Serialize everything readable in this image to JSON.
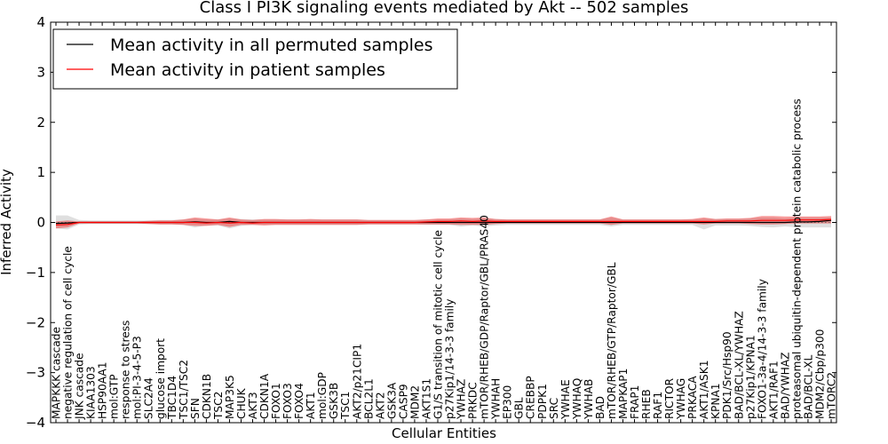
{
  "chart_data": {
    "type": "line",
    "title": "Class I PI3K signaling events mediated by Akt -- 502 samples",
    "xlabel": "Cellular Entities",
    "ylabel": "Inferred Activity",
    "ylim": [
      -4,
      4
    ],
    "yticks": [
      -4,
      -3,
      -2,
      -1,
      0,
      1,
      2,
      3,
      4
    ],
    "ytick_labels": [
      "−4",
      "−3",
      "−2",
      "−1",
      "0",
      "1",
      "2",
      "3",
      "4"
    ],
    "legend_position": "top-left",
    "categories": [
      "MAPKKK cascade",
      "negative regulation of cell cycle",
      "JNK cascade",
      "KIAA1303",
      "HSP90AA1",
      "mol:GTP",
      "response to stress",
      "mol:PI-3-4-5-P3",
      "SLC2A4",
      "glucose import",
      "TBC1D4",
      "TSC1/TSC2",
      "SFN",
      "CDKN1B",
      "TSC2",
      "MAP3K5",
      "CHUK",
      "AKT3",
      "CDKN1A",
      "FOXO1",
      "FOXO3",
      "FOXO4",
      "AKT1",
      "mol:GDP",
      "GSK3B",
      "TSC1",
      "AKT2/p21CIP1",
      "BCL2L1",
      "AKT2",
      "GSK3A",
      "CASP9",
      "MDM2",
      "AKT1S1",
      "G1/S transition of mitotic cell cycle",
      "p27Kip1/14-3-3 family",
      "YWHAZ",
      "PRKDC",
      "mTOR/RHEB/GDP/Raptor/GBL/PRAS40",
      "YWHAH",
      "EP300",
      "GBL",
      "CREBBP",
      "PDPK1",
      "SRC",
      "YWHAE",
      "YWHAQ",
      "YWHAB",
      "BAD",
      "mTOR/RHEB/GTP/Raptor/GBL",
      "MAPKAP1",
      "FRAP1",
      "RHEB",
      "RAF1",
      "RICTOR",
      "YWHAG",
      "PRKACA",
      "AKT1/ASK1",
      "KPNA1",
      "PDK1/Src/Hsp90",
      "BAD/BCL-XL/YWHAZ",
      "p27Kip1/KPNA1",
      "FOXO1-3a-4/14-3-3 family",
      "AKT1/RAF1",
      "BAD/YWHAZ",
      "proteasomal ubiquitin-dependent protein catabolic process",
      "BAD/BCL-XL",
      "MDM2/Cbp/p300",
      "mTORC2"
    ],
    "series": [
      {
        "name": "Mean activity in all permuted samples",
        "color": "#000000",
        "values": [
          -0.02,
          -0.01,
          0.0,
          0.0,
          0.0,
          0.0,
          0.0,
          0.0,
          0.0,
          0.0,
          0.0,
          0.0,
          0.01,
          0.0,
          0.0,
          0.02,
          0.0,
          0.0,
          0.0,
          0.0,
          0.0,
          0.0,
          0.0,
          0.0,
          0.0,
          0.0,
          0.0,
          0.0,
          0.0,
          0.0,
          0.0,
          0.0,
          0.0,
          0.0,
          0.0,
          0.0,
          0.0,
          0.0,
          0.0,
          0.0,
          0.0,
          0.0,
          0.0,
          0.0,
          0.0,
          0.0,
          0.0,
          0.0,
          0.0,
          0.0,
          0.0,
          0.0,
          0.0,
          0.0,
          0.0,
          0.0,
          0.0,
          0.0,
          0.0,
          0.0,
          0.0,
          0.0,
          0.0,
          0.0,
          0.01,
          0.01,
          0.02,
          0.04
        ],
        "band_upper": [
          0.14,
          0.14,
          0.05,
          0.04,
          0.04,
          0.04,
          0.04,
          0.04,
          0.04,
          0.05,
          0.05,
          0.06,
          0.08,
          0.06,
          0.06,
          0.08,
          0.07,
          0.06,
          0.06,
          0.06,
          0.06,
          0.06,
          0.06,
          0.06,
          0.06,
          0.06,
          0.06,
          0.05,
          0.05,
          0.05,
          0.05,
          0.05,
          0.06,
          0.06,
          0.06,
          0.08,
          0.07,
          0.08,
          0.07,
          0.06,
          0.06,
          0.06,
          0.06,
          0.06,
          0.06,
          0.06,
          0.06,
          0.06,
          0.1,
          0.06,
          0.06,
          0.06,
          0.06,
          0.06,
          0.06,
          0.06,
          0.08,
          0.07,
          0.07,
          0.07,
          0.08,
          0.1,
          0.1,
          0.08,
          0.1,
          0.1,
          0.1,
          0.1
        ],
        "band_lower": [
          -0.12,
          -0.14,
          -0.04,
          -0.03,
          -0.03,
          -0.03,
          -0.03,
          -0.03,
          -0.03,
          -0.04,
          -0.04,
          -0.05,
          -0.1,
          -0.06,
          -0.06,
          -0.12,
          -0.07,
          -0.05,
          -0.05,
          -0.05,
          -0.05,
          -0.05,
          -0.05,
          -0.05,
          -0.05,
          -0.05,
          -0.05,
          -0.04,
          -0.04,
          -0.04,
          -0.04,
          -0.04,
          -0.05,
          -0.05,
          -0.05,
          -0.08,
          -0.06,
          -0.08,
          -0.06,
          -0.05,
          -0.05,
          -0.05,
          -0.05,
          -0.05,
          -0.05,
          -0.05,
          -0.05,
          -0.05,
          -0.08,
          -0.05,
          -0.05,
          -0.05,
          -0.05,
          -0.05,
          -0.05,
          -0.05,
          -0.14,
          -0.06,
          -0.06,
          -0.06,
          -0.07,
          -0.09,
          -0.1,
          -0.08,
          -0.1,
          -0.1,
          -0.1,
          -0.1
        ]
      },
      {
        "name": "Mean activity in patient samples",
        "color": "#ff0000",
        "values": [
          -0.05,
          -0.04,
          0.0,
          0.0,
          0.0,
          0.0,
          0.0,
          0.0,
          0.0,
          0.0,
          0.0,
          0.0,
          0.0,
          -0.01,
          0.0,
          -0.01,
          0.0,
          -0.01,
          0.0,
          0.0,
          0.0,
          0.0,
          0.0,
          0.0,
          0.0,
          0.0,
          0.0,
          0.0,
          0.0,
          0.0,
          0.0,
          0.0,
          0.01,
          0.02,
          0.02,
          0.03,
          0.02,
          0.03,
          0.02,
          0.02,
          0.02,
          0.02,
          0.02,
          0.02,
          0.02,
          0.02,
          0.02,
          0.02,
          0.02,
          0.02,
          0.02,
          0.02,
          0.02,
          0.02,
          0.02,
          0.02,
          0.02,
          0.02,
          0.03,
          0.03,
          0.03,
          0.04,
          0.04,
          0.04,
          0.05,
          0.05,
          0.05,
          0.06
        ],
        "band_upper": [
          0.02,
          0.04,
          0.02,
          0.02,
          0.02,
          0.02,
          0.02,
          0.02,
          0.03,
          0.04,
          0.04,
          0.06,
          0.1,
          0.08,
          0.06,
          0.1,
          0.06,
          0.05,
          0.07,
          0.07,
          0.06,
          0.06,
          0.07,
          0.06,
          0.06,
          0.06,
          0.06,
          0.05,
          0.05,
          0.05,
          0.05,
          0.05,
          0.06,
          0.08,
          0.08,
          0.1,
          0.09,
          0.1,
          0.07,
          0.06,
          0.06,
          0.06,
          0.06,
          0.06,
          0.06,
          0.06,
          0.06,
          0.06,
          0.12,
          0.06,
          0.06,
          0.06,
          0.06,
          0.06,
          0.06,
          0.07,
          0.1,
          0.07,
          0.08,
          0.08,
          0.09,
          0.13,
          0.13,
          0.12,
          0.12,
          0.12,
          0.12,
          0.13
        ],
        "band_lower": [
          -0.12,
          -0.1,
          -0.02,
          -0.02,
          -0.02,
          -0.02,
          -0.02,
          -0.02,
          -0.03,
          -0.04,
          -0.04,
          -0.05,
          -0.07,
          -0.07,
          -0.05,
          -0.09,
          -0.05,
          -0.05,
          -0.06,
          -0.05,
          -0.05,
          -0.05,
          -0.05,
          -0.05,
          -0.05,
          -0.05,
          -0.05,
          -0.04,
          -0.04,
          -0.04,
          -0.04,
          -0.04,
          -0.04,
          -0.04,
          -0.04,
          -0.05,
          -0.05,
          -0.05,
          -0.03,
          -0.02,
          -0.02,
          -0.02,
          -0.02,
          -0.02,
          -0.02,
          -0.02,
          -0.02,
          -0.02,
          -0.05,
          -0.02,
          -0.02,
          -0.02,
          -0.02,
          -0.02,
          -0.02,
          -0.02,
          -0.04,
          -0.02,
          -0.02,
          -0.02,
          -0.03,
          -0.04,
          -0.04,
          -0.03,
          -0.02,
          -0.02,
          -0.02,
          -0.02
        ]
      }
    ],
    "baseline_style": "dotted",
    "grid": false
  }
}
